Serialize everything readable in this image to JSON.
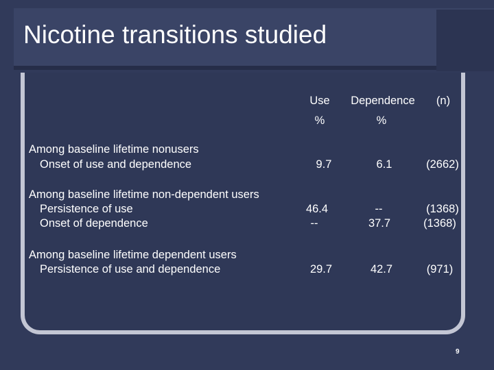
{
  "slide": {
    "title": "Nicotine transitions studied",
    "page_number": "9"
  },
  "table": {
    "headers": {
      "use": "Use",
      "dependence": "Dependence",
      "n": "(n)",
      "use_unit": "%",
      "dependence_unit": "%"
    },
    "groups": [
      {
        "heading": "Among baseline lifetime nonusers",
        "rows": [
          {
            "label": "Onset of use and dependence",
            "use": "9.7",
            "dependence": "6.1",
            "n": "(2662)"
          }
        ]
      },
      {
        "heading": "Among baseline lifetime non-dependent users",
        "rows": [
          {
            "label": "Persistence of use",
            "use": "46.4",
            "dependence": "--",
            "n": "(1368)"
          },
          {
            "label": "Onset of dependence",
            "use": "--",
            "dependence": "37.7",
            "n": "(1368)"
          }
        ]
      },
      {
        "heading": "Among baseline lifetime dependent users",
        "rows": [
          {
            "label": "Persistence of use and dependence",
            "use": "29.7",
            "dependence": "42.7",
            "n": "(971)"
          }
        ]
      }
    ]
  }
}
